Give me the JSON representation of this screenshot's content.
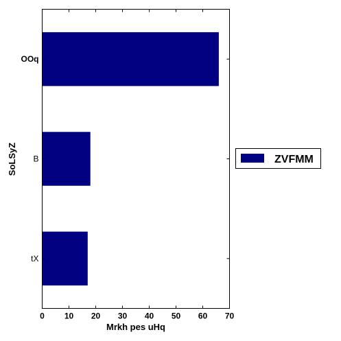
{
  "chart_data": {
    "type": "bar",
    "orientation": "horizontal",
    "categories": [
      "tX",
      "B",
      "OOq"
    ],
    "series": [
      {
        "name": "ZVFMM",
        "values": [
          17,
          18,
          66
        ],
        "color": "#000080"
      }
    ],
    "xlabel": "Mrkh pes uHq",
    "ylabel": "SoLSyZ",
    "xlim": [
      0,
      70
    ],
    "xticks": [
      "0",
      "10",
      "20",
      "30",
      "40",
      "50",
      "60",
      "70"
    ],
    "grid": false,
    "legend": {
      "placement": "outside-right",
      "entries": [
        "ZVFMM"
      ]
    }
  }
}
